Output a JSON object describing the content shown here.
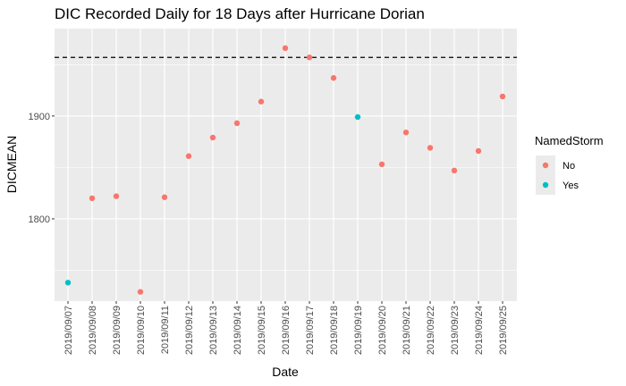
{
  "chart_data": {
    "type": "scatter",
    "title": "DIC Recorded Daily for 18 Days after Hurricane Dorian",
    "xlabel": "Date",
    "ylabel": "DICMEAN",
    "x_ticks": [
      "2019/09/07",
      "2019/09/08",
      "2019/09/09",
      "2019/09/10",
      "2019/09/11",
      "2019/09/12",
      "2019/09/13",
      "2019/09/14",
      "2019/09/15",
      "2019/09/16",
      "2019/09/17",
      "2019/09/18",
      "2019/09/19",
      "2019/09/20",
      "2019/09/21",
      "2019/09/22",
      "2019/09/23",
      "2019/09/24",
      "2019/09/25"
    ],
    "y_ticks": [
      1800,
      1900
    ],
    "ylim": [
      1720,
      1985
    ],
    "grid": true,
    "reference_line": {
      "y": 1957,
      "style": "dashed"
    },
    "legend": {
      "title": "NamedStorm",
      "position": "right",
      "entries": [
        {
          "label": "No",
          "color": "#F8766D"
        },
        {
          "label": "Yes",
          "color": "#00BFC4"
        }
      ]
    },
    "points": [
      {
        "x": "2019/09/07",
        "y": 1738,
        "group": "Yes"
      },
      {
        "x": "2019/09/08",
        "y": 1820,
        "group": "No"
      },
      {
        "x": "2019/09/09",
        "y": 1822,
        "group": "No"
      },
      {
        "x": "2019/09/10",
        "y": 1729,
        "group": "No"
      },
      {
        "x": "2019/09/11",
        "y": 1821,
        "group": "No"
      },
      {
        "x": "2019/09/12",
        "y": 1861,
        "group": "No"
      },
      {
        "x": "2019/09/13",
        "y": 1879,
        "group": "No"
      },
      {
        "x": "2019/09/14",
        "y": 1893,
        "group": "No"
      },
      {
        "x": "2019/09/15",
        "y": 1914,
        "group": "No"
      },
      {
        "x": "2019/09/16",
        "y": 1966,
        "group": "No"
      },
      {
        "x": "2019/09/17",
        "y": 1957,
        "group": "No"
      },
      {
        "x": "2019/09/18",
        "y": 1937,
        "group": "No"
      },
      {
        "x": "2019/09/19",
        "y": 1899,
        "group": "Yes"
      },
      {
        "x": "2019/09/20",
        "y": 1853,
        "group": "No"
      },
      {
        "x": "2019/09/21",
        "y": 1884,
        "group": "No"
      },
      {
        "x": "2019/09/22",
        "y": 1869,
        "group": "No"
      },
      {
        "x": "2019/09/23",
        "y": 1847,
        "group": "No"
      },
      {
        "x": "2019/09/24",
        "y": 1866,
        "group": "No"
      },
      {
        "x": "2019/09/25",
        "y": 1919,
        "group": "No"
      }
    ]
  }
}
